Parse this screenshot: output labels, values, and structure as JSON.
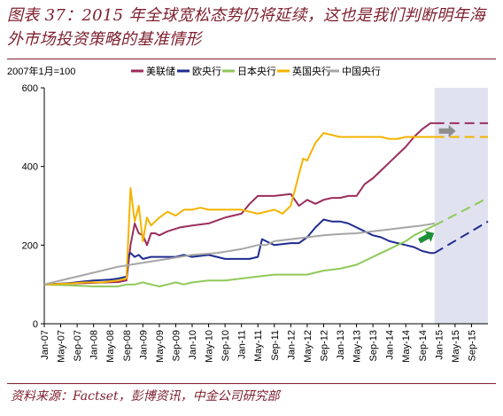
{
  "header": {
    "title": "图表 37：2015 年全球宽松态势仍将延续，这也是我们判断明年海外市场投资策略的基准情形"
  },
  "footer": {
    "source": "资料来源：Factset，彭博资讯，中金公司研究部"
  },
  "chart_data": {
    "type": "line",
    "index_note": "2007年1月=100",
    "ylim": [
      0,
      600
    ],
    "yticks": [
      0,
      200,
      400,
      600
    ],
    "xlim": [
      0,
      108
    ],
    "xtick_labels": [
      "Jan-07",
      "May-07",
      "Sep-07",
      "Jan-08",
      "May-08",
      "Sep-08",
      "Jan-09",
      "May-09",
      "Sep-09",
      "Jan-10",
      "May-10",
      "Sep-10",
      "Jan-11",
      "May-11",
      "Sep-11",
      "Jan-12",
      "May-12",
      "Sep-12",
      "Jan-13",
      "May-13",
      "Sep-13",
      "Jan-14",
      "May-14",
      "Sep-14",
      "Jan-15",
      "May-15",
      "Sep-15"
    ],
    "forecast_start": 95,
    "legend_position": "top",
    "series": [
      {
        "name": "美联储",
        "color": "#9b2d5e",
        "x": [
          0,
          6,
          12,
          18,
          20,
          21,
          22,
          23,
          24,
          25,
          26,
          27,
          28,
          30,
          33,
          36,
          40,
          44,
          48,
          50,
          52,
          53,
          56,
          60,
          62,
          64,
          66,
          68,
          70,
          72,
          74,
          76,
          78,
          80,
          82,
          84,
          86,
          88,
          90,
          92,
          94,
          95
        ],
        "y": [
          100,
          102,
          104,
          106,
          110,
          200,
          255,
          230,
          225,
          200,
          230,
          230,
          225,
          235,
          245,
          250,
          255,
          270,
          280,
          305,
          325,
          325,
          325,
          330,
          300,
          315,
          305,
          315,
          320,
          320,
          325,
          325,
          355,
          370,
          390,
          410,
          430,
          450,
          475,
          495,
          510,
          510
        ],
        "forecast_x": [
          95,
          108
        ],
        "forecast_y": [
          510,
          510
        ]
      },
      {
        "name": "欧央行",
        "color": "#1f2c8f",
        "x": [
          0,
          6,
          10,
          12,
          16,
          18,
          20,
          20.5,
          21,
          22,
          23,
          24,
          26,
          28,
          30,
          32,
          34,
          36,
          40,
          44,
          48,
          50,
          52,
          53,
          54,
          55,
          56,
          60,
          62,
          64,
          66,
          68,
          70,
          72,
          74,
          76,
          78,
          80,
          82,
          84,
          86,
          88,
          90,
          92,
          94,
          95
        ],
        "y": [
          100,
          103,
          108,
          110,
          112,
          115,
          120,
          175,
          180,
          170,
          175,
          165,
          170,
          170,
          170,
          170,
          175,
          170,
          175,
          165,
          165,
          165,
          170,
          215,
          210,
          205,
          200,
          205,
          205,
          220,
          245,
          265,
          260,
          260,
          255,
          245,
          235,
          225,
          220,
          210,
          205,
          200,
          195,
          185,
          180,
          180
        ],
        "forecast_x": [
          95,
          108
        ],
        "forecast_y": [
          180,
          260
        ]
      },
      {
        "name": "日本央行",
        "color": "#8fc95a",
        "x": [
          0,
          6,
          12,
          18,
          20,
          22,
          24,
          26,
          28,
          30,
          32,
          34,
          36,
          40,
          44,
          48,
          52,
          56,
          60,
          64,
          68,
          72,
          76,
          78,
          80,
          82,
          84,
          86,
          88,
          90,
          92,
          94,
          95
        ],
        "y": [
          100,
          98,
          95,
          95,
          100,
          100,
          105,
          100,
          95,
          100,
          105,
          100,
          105,
          110,
          110,
          115,
          120,
          125,
          125,
          125,
          135,
          140,
          150,
          160,
          170,
          180,
          190,
          200,
          210,
          225,
          235,
          245,
          250
        ],
        "forecast_x": [
          95,
          108
        ],
        "forecast_y": [
          250,
          320
        ]
      },
      {
        "name": "英国央行",
        "color": "#f3b300",
        "x": [
          0,
          6,
          10,
          14,
          18,
          20,
          21,
          22,
          23,
          24,
          25,
          26,
          28,
          30,
          32,
          34,
          36,
          38,
          40,
          44,
          48,
          50,
          52,
          54,
          56,
          58,
          60,
          62,
          63,
          64,
          66,
          68,
          70,
          72,
          74,
          76,
          78,
          80,
          82,
          84,
          86,
          88,
          90,
          92,
          94,
          95
        ],
        "y": [
          100,
          102,
          105,
          105,
          110,
          115,
          345,
          260,
          300,
          210,
          270,
          250,
          270,
          285,
          275,
          290,
          290,
          295,
          290,
          290,
          290,
          285,
          280,
          285,
          290,
          280,
          300,
          380,
          420,
          415,
          460,
          485,
          480,
          475,
          475,
          475,
          475,
          475,
          475,
          470,
          470,
          475,
          475,
          475,
          475,
          475
        ],
        "forecast_x": [
          95,
          108
        ],
        "forecast_y": [
          475,
          475
        ]
      },
      {
        "name": "中国央行",
        "color": "#a6a6a6",
        "x": [
          0,
          6,
          12,
          18,
          24,
          30,
          36,
          42,
          48,
          52,
          54,
          56,
          60,
          64,
          68,
          72,
          76,
          80,
          84,
          88,
          92,
          95
        ],
        "y": [
          100,
          115,
          130,
          145,
          155,
          165,
          175,
          180,
          190,
          200,
          200,
          210,
          215,
          220,
          225,
          228,
          230,
          235,
          240,
          245,
          250,
          255
        ],
        "forecast_x": [],
        "forecast_y": []
      }
    ],
    "annotations": [
      {
        "name": "right-arrow",
        "color": "#8d8d8d",
        "x": 98,
        "y": 490
      },
      {
        "name": "up-right-arrow",
        "color": "#1f8f3a",
        "x": 93,
        "y": 220
      }
    ]
  }
}
